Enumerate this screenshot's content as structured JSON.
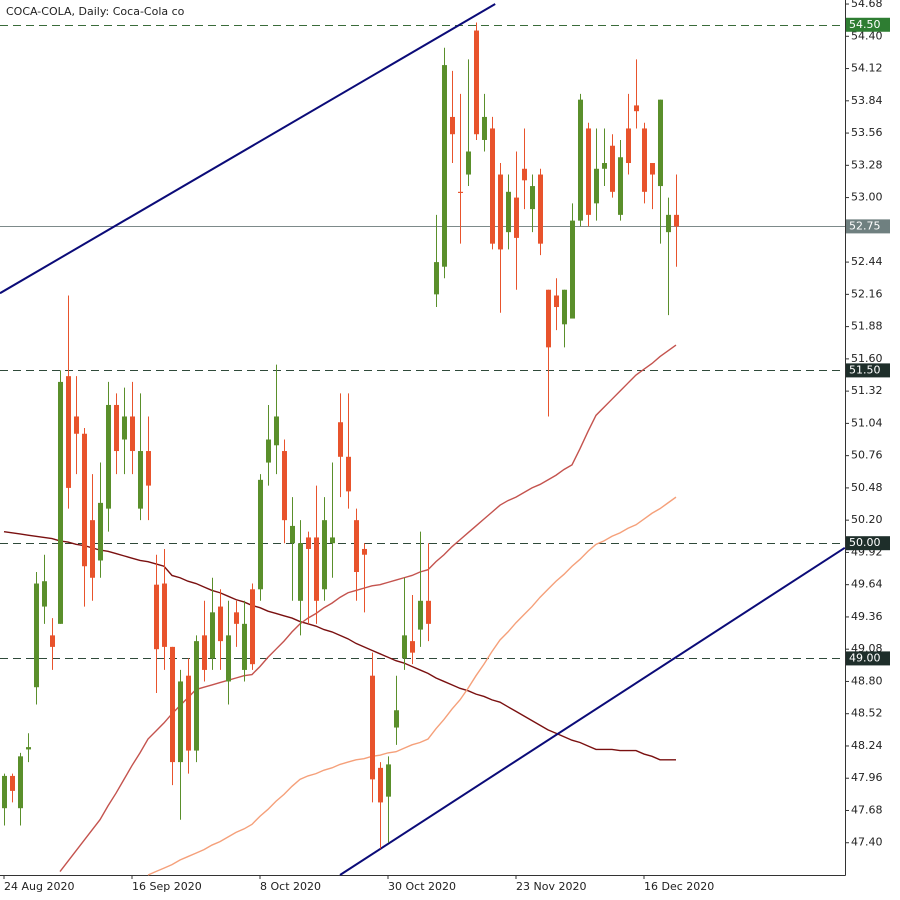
{
  "chart_data": {
    "type": "candlestick",
    "title": "COCA-COLA, Daily:  Coca-Cola co",
    "categories": [
      "24 Aug 2020",
      null,
      null,
      null,
      null,
      null,
      null,
      null,
      null,
      null,
      null,
      null,
      null,
      null,
      null,
      null,
      "16 Sep 2020",
      null,
      null,
      null,
      null,
      null,
      null,
      null,
      null,
      null,
      null,
      null,
      null,
      null,
      null,
      null,
      "8 Oct 2020",
      null,
      null,
      null,
      null,
      null,
      null,
      null,
      null,
      null,
      null,
      null,
      null,
      null,
      null,
      null,
      "30 Oct 2020",
      null,
      null,
      null,
      null,
      null,
      null,
      null,
      null,
      null,
      null,
      null,
      null,
      null,
      null,
      null,
      "23 Nov 2020",
      null,
      null,
      null,
      null,
      null,
      null,
      null,
      null,
      null,
      null,
      null,
      null,
      null,
      null,
      null,
      "16 Dec 2020",
      null,
      null,
      null,
      null
    ],
    "candles": {
      "up_color": "#5a8f2b",
      "down_color": "#e8532c",
      "open": [
        47.7,
        47.98,
        47.7,
        48.21,
        48.75,
        49.45,
        49.2,
        49.3,
        51.45,
        51.1,
        50.95,
        50.2,
        49.85,
        50.3,
        51.2,
        50.9,
        51.1,
        50.3,
        50.8,
        49.64,
        49.65,
        49.1,
        48.1,
        48.85,
        48.2,
        49.2,
        49.0,
        49.45,
        48.8,
        49.4,
        48.9,
        49.6,
        49.6,
        50.7,
        50.85,
        50.8,
        50.0,
        49.5,
        50.05,
        50.05,
        49.6,
        50.0,
        51.05,
        50.75,
        50.2,
        49.95,
        48.85,
        48.05,
        47.8,
        48.4,
        49.0,
        49.15,
        49.25,
        49.5,
        52.16,
        52.4,
        53.7,
        53.05,
        53.2,
        54.45,
        53.5,
        53.6,
        53.2,
        52.7,
        53.0,
        53.25,
        52.9,
        53.2,
        52.2,
        52.15,
        51.9,
        51.95,
        52.8,
        53.6,
        52.95,
        53.25,
        53.45,
        52.85,
        53.6,
        53.8,
        53.6,
        53.3,
        53.1,
        52.7,
        52.85
      ],
      "high": [
        48.0,
        48.0,
        48.18,
        48.35,
        49.75,
        49.9,
        49.35,
        51.5,
        52.15,
        51.45,
        51.0,
        50.6,
        50.7,
        51.4,
        51.3,
        51.35,
        51.4,
        51.3,
        51.1,
        49.9,
        49.95,
        49.1,
        48.9,
        49.0,
        49.2,
        49.5,
        49.7,
        49.6,
        49.5,
        49.5,
        49.5,
        49.65,
        50.6,
        51.2,
        51.55,
        50.9,
        50.4,
        50.2,
        50.1,
        50.5,
        50.4,
        50.7,
        51.3,
        51.3,
        50.3,
        50.0,
        49.05,
        48.1,
        48.15,
        48.85,
        49.7,
        49.55,
        50.1,
        50.0,
        52.85,
        54.3,
        54.1,
        53.9,
        54.2,
        54.52,
        53.9,
        53.7,
        53.3,
        53.2,
        53.4,
        53.6,
        53.2,
        53.25,
        52.2,
        52.3,
        52.2,
        52.95,
        53.9,
        53.65,
        53.6,
        53.6,
        53.55,
        53.5,
        53.9,
        54.2,
        53.65,
        53.3,
        53.85,
        53.0,
        53.2
      ],
      "low": [
        47.55,
        47.75,
        47.55,
        48.1,
        48.6,
        49.3,
        48.9,
        49.3,
        50.3,
        50.6,
        49.45,
        49.5,
        49.7,
        50.1,
        50.6,
        50.6,
        50.6,
        50.2,
        50.2,
        48.7,
        48.9,
        47.9,
        47.6,
        48.0,
        48.1,
        48.8,
        48.9,
        48.9,
        48.6,
        49.1,
        48.8,
        48.9,
        49.5,
        50.5,
        50.6,
        50.0,
        49.5,
        49.2,
        49.3,
        49.3,
        49.5,
        49.7,
        50.4,
        50.3,
        49.5,
        49.4,
        47.75,
        47.35,
        47.4,
        48.25,
        48.9,
        48.95,
        49.1,
        49.15,
        52.05,
        52.3,
        53.3,
        52.6,
        53.1,
        53.5,
        53.4,
        52.55,
        52.0,
        52.55,
        52.2,
        52.9,
        52.7,
        52.5,
        51.1,
        51.85,
        51.7,
        51.95,
        52.75,
        52.75,
        52.8,
        53.1,
        53.0,
        52.8,
        53.2,
        53.6,
        52.95,
        52.9,
        52.6,
        51.98,
        52.4
      ],
      "close": [
        47.98,
        47.85,
        48.15,
        48.23,
        49.65,
        49.67,
        49.1,
        51.4,
        50.48,
        50.95,
        49.8,
        49.7,
        50.35,
        51.2,
        50.8,
        51.1,
        50.8,
        50.8,
        50.5,
        49.08,
        49.1,
        48.1,
        48.8,
        48.2,
        49.15,
        48.9,
        49.4,
        49.15,
        49.2,
        49.3,
        49.3,
        48.95,
        50.55,
        50.9,
        51.1,
        50.2,
        50.15,
        50.0,
        49.95,
        49.5,
        50.2,
        50.05,
        50.75,
        50.45,
        49.75,
        49.9,
        47.95,
        47.75,
        48.08,
        48.55,
        49.2,
        49.05,
        49.5,
        49.3,
        52.44,
        54.15,
        53.55,
        53.04,
        53.4,
        53.55,
        53.7,
        52.6,
        52.55,
        53.05,
        52.65,
        53.15,
        53.1,
        52.6,
        51.7,
        52.05,
        52.2,
        52.8,
        53.85,
        52.85,
        53.25,
        53.3,
        53.05,
        53.35,
        53.3,
        53.75,
        53.05,
        53.2,
        53.85,
        52.85,
        52.75
      ]
    },
    "moving_averages": [
      {
        "color": "#7a1010",
        "values": [
          50.1,
          50.09,
          50.08,
          50.07,
          50.06,
          50.05,
          50.04,
          50.02,
          50.01,
          49.99,
          49.98,
          49.96,
          49.94,
          49.93,
          49.91,
          49.89,
          49.87,
          49.85,
          49.84,
          49.82,
          49.8,
          49.72,
          49.7,
          49.67,
          49.65,
          49.62,
          49.59,
          49.57,
          49.54,
          49.51,
          49.49,
          49.46,
          49.44,
          49.41,
          49.39,
          49.37,
          49.35,
          49.32,
          49.3,
          49.28,
          49.25,
          49.23,
          49.2,
          49.17,
          49.13,
          49.1,
          49.07,
          49.04,
          49.01,
          48.98,
          48.96,
          48.93,
          48.9,
          48.87,
          48.83,
          48.8,
          48.77,
          48.74,
          48.72,
          48.69,
          48.67,
          48.64,
          48.62,
          48.58,
          48.54,
          48.5,
          48.46,
          48.42,
          48.38,
          48.35,
          48.32,
          48.29,
          48.27,
          48.24,
          48.21,
          48.21,
          48.21,
          48.2,
          48.2,
          48.2,
          48.17,
          48.15,
          48.12,
          48.12,
          48.12
        ]
      },
      {
        "color": "#c4534e",
        "values": [
          null,
          null,
          null,
          null,
          null,
          null,
          null,
          47.15,
          47.24,
          47.33,
          47.42,
          47.51,
          47.6,
          47.72,
          47.83,
          47.95,
          48.07,
          48.18,
          48.3,
          48.37,
          48.44,
          48.52,
          48.59,
          48.66,
          48.73,
          48.75,
          48.77,
          48.79,
          48.81,
          48.83,
          48.85,
          48.86,
          48.93,
          49.01,
          49.08,
          49.15,
          49.23,
          49.3,
          49.35,
          49.39,
          49.44,
          49.48,
          49.53,
          49.57,
          49.59,
          49.61,
          49.63,
          49.64,
          49.66,
          49.68,
          49.7,
          49.72,
          49.75,
          49.77,
          49.84,
          49.9,
          49.97,
          50.03,
          50.09,
          50.15,
          50.21,
          50.27,
          50.33,
          50.37,
          50.4,
          50.44,
          50.48,
          50.51,
          50.55,
          50.59,
          50.64,
          50.68,
          50.82,
          50.97,
          51.11,
          51.18,
          51.25,
          51.32,
          51.39,
          51.46,
          51.51,
          51.56,
          51.62,
          51.67,
          51.72
        ]
      },
      {
        "color": "#f5a07a",
        "values": [
          null,
          null,
          null,
          null,
          null,
          null,
          null,
          null,
          null,
          null,
          null,
          null,
          null,
          null,
          null,
          null,
          null,
          null,
          47.12,
          47.15,
          47.18,
          47.21,
          47.25,
          47.28,
          47.31,
          47.34,
          47.38,
          47.41,
          47.45,
          47.49,
          47.52,
          47.56,
          47.63,
          47.69,
          47.76,
          47.82,
          47.89,
          47.95,
          47.98,
          48.0,
          48.03,
          48.05,
          48.08,
          48.1,
          48.12,
          48.13,
          48.15,
          48.16,
          48.18,
          48.19,
          48.22,
          48.25,
          48.27,
          48.3,
          48.39,
          48.47,
          48.56,
          48.64,
          48.74,
          48.85,
          48.95,
          49.06,
          49.16,
          49.23,
          49.31,
          49.38,
          49.45,
          49.53,
          49.6,
          49.67,
          49.73,
          49.8,
          49.86,
          49.93,
          49.99,
          50.02,
          50.06,
          50.09,
          50.13,
          50.16,
          50.21,
          50.26,
          50.3,
          50.35,
          50.4
        ]
      }
    ],
    "trendlines": [
      {
        "color": "#0b0b78",
        "x": [
          -0.5,
          61.4
        ],
        "y": [
          52.17,
          54.68
        ]
      },
      {
        "color": "#0b0b78",
        "x": [
          42,
          105.1
        ],
        "y": [
          47.12,
          49.96
        ]
      }
    ],
    "levels": [
      {
        "value": 54.5,
        "label": "54.50",
        "color": "#3a6b3a",
        "label_color": "#2e7d32",
        "style": "dashed"
      },
      {
        "value": 52.75,
        "label": "52.75",
        "color": "#7d8a8a",
        "label_color": "#6f8080",
        "style": "solid"
      },
      {
        "value": 51.5,
        "label": "51.50",
        "color": "#2f4a3a",
        "label_color": "#1e2e2a",
        "style": "dashed"
      },
      {
        "value": 50,
        "label": "50.00",
        "color": "#2f4a3a",
        "label_color": "#1e2e2a",
        "style": "dashed"
      },
      {
        "value": 49,
        "label": "49.00",
        "color": "#2f4a3a",
        "label_color": "#1e2e2a",
        "style": "dashed"
      }
    ],
    "ylim": [
      47.12,
      54.715
    ],
    "yticks": [
      {
        "value": 47.4,
        "label": "47.40"
      },
      47.68,
      47.96,
      48.24,
      48.52,
      {
        "value": 48.8,
        "label": "48.80"
      },
      49.08,
      49.36,
      49.64,
      49.92,
      {
        "value": 50.2,
        "label": "50.20"
      },
      50.48,
      50.76,
      51.04,
      51.32,
      {
        "value": 51.6,
        "label": "51.60"
      },
      51.88,
      52.16,
      52.44,
      {
        "value": 53,
        "label": "53.00"
      },
      53.28,
      53.56,
      53.84,
      54.12,
      {
        "value": 54.4,
        "label": "54.40"
      },
      54.68
    ],
    "grid": false
  }
}
